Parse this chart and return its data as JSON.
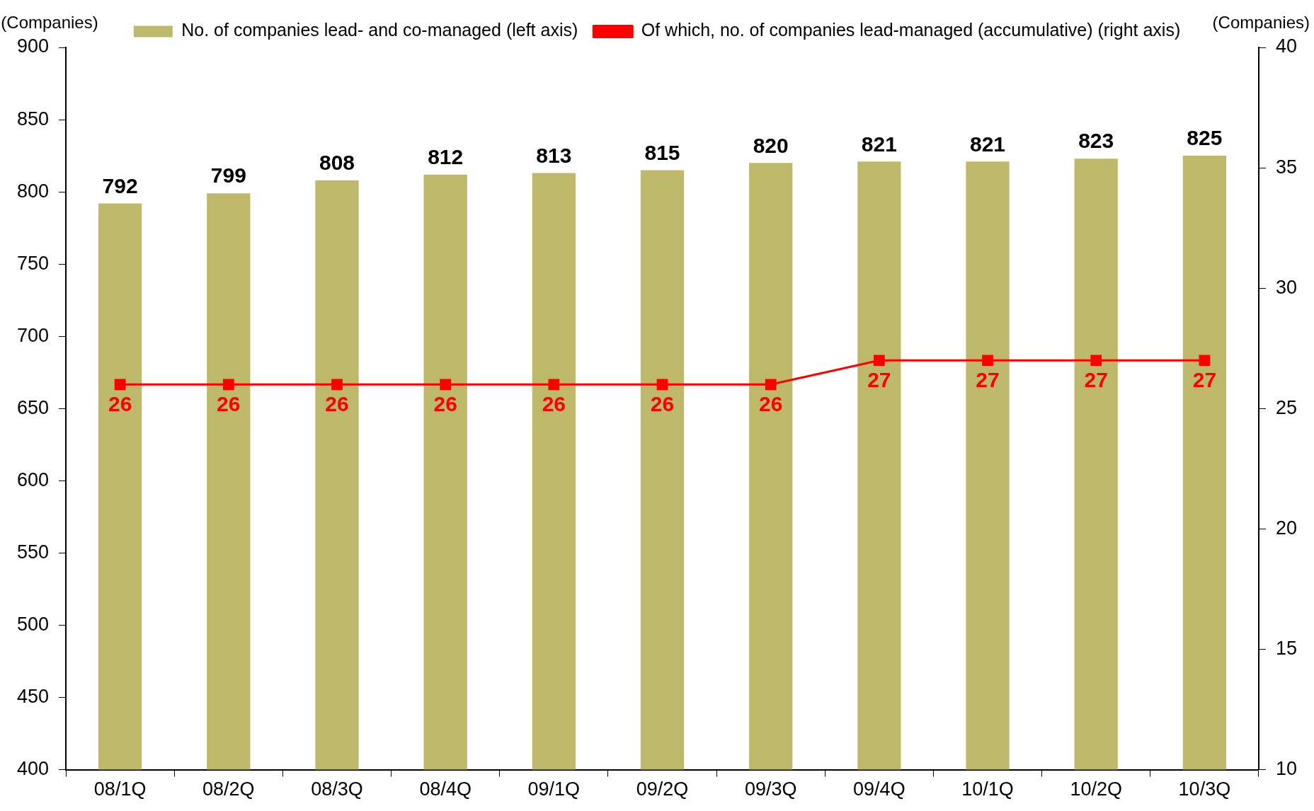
{
  "chart_data": {
    "type": "bar",
    "ylabel": "(Companies)",
    "y2label": "(Companies)",
    "categories": [
      "08/1Q",
      "08/2Q",
      "08/3Q",
      "08/4Q",
      "09/1Q",
      "09/2Q",
      "09/3Q",
      "09/4Q",
      "10/1Q",
      "10/2Q",
      "10/3Q"
    ],
    "series": [
      {
        "name": "No. of companies lead- and co-managed (left axis)",
        "color": "#bdb86a",
        "values": [
          792,
          799,
          808,
          812,
          813,
          815,
          820,
          821,
          821,
          823,
          825
        ]
      },
      {
        "name": "Of which, no. of companies lead-managed (accumulative) (right axis)",
        "type": "line",
        "axis": "y2",
        "color": "#ff0000",
        "marker": "square",
        "values": [
          26,
          26,
          26,
          26,
          26,
          26,
          26,
          27,
          27,
          27,
          27
        ]
      }
    ],
    "ylim": [
      400,
      900
    ],
    "yticks": [
      400,
      450,
      500,
      550,
      600,
      650,
      700,
      750,
      800,
      850,
      900
    ],
    "y2lim": [
      10,
      40
    ],
    "y2ticks": [
      10,
      15,
      20,
      25,
      30,
      35,
      40
    ],
    "data_labels": true,
    "legend": "top",
    "grid": false
  }
}
